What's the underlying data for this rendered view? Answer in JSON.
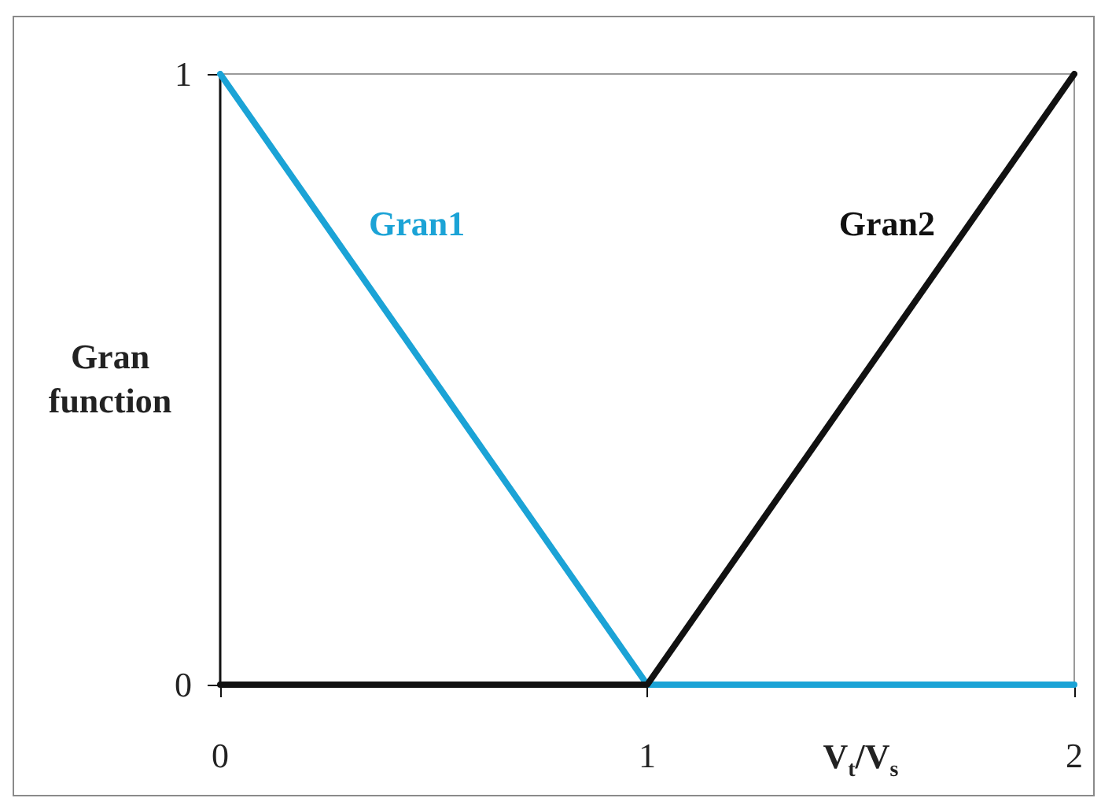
{
  "chart_data": {
    "type": "line",
    "xlabel": "V$_{t}$/V$_{s}$",
    "ylabel": "Gran function",
    "x": [
      0,
      1,
      2
    ],
    "series": [
      {
        "name": "Gran1",
        "color": "#1ba3d6",
        "values": [
          1,
          0,
          0
        ]
      },
      {
        "name": "Gran2",
        "color": "#111111",
        "values": [
          0,
          0,
          1
        ]
      }
    ],
    "xlim": [
      0,
      2
    ],
    "ylim": [
      0,
      1
    ],
    "xticks": [
      0,
      1,
      2
    ],
    "yticks": [
      0,
      1
    ],
    "marker": "none",
    "line_style": "solid"
  }
}
